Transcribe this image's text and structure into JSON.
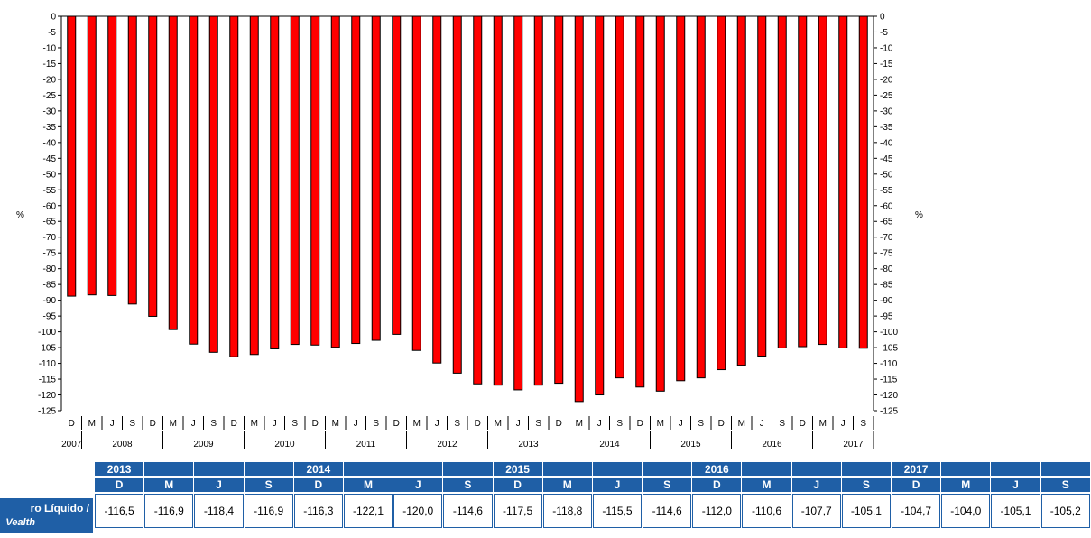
{
  "chart_data": {
    "type": "bar",
    "y_unit_label": "%",
    "ylim": [
      -125,
      0
    ],
    "ytick_step": 5,
    "bar_color": "#ff0000",
    "period_labels": [
      "D",
      "M",
      "J",
      "S",
      "D",
      "M",
      "J",
      "S",
      "D",
      "M",
      "J",
      "S",
      "D",
      "M",
      "J",
      "S",
      "D",
      "M",
      "J",
      "S",
      "D",
      "M",
      "J",
      "S",
      "D",
      "M",
      "J",
      "S",
      "D",
      "M",
      "J",
      "S",
      "D",
      "M",
      "J",
      "S",
      "D",
      "M",
      "J",
      "S"
    ],
    "year_labels": [
      {
        "label": "2007",
        "index": 0
      },
      {
        "label": "2008",
        "index": 2.5
      },
      {
        "label": "2009",
        "index": 6.5
      },
      {
        "label": "2010",
        "index": 10.5
      },
      {
        "label": "2011",
        "index": 14.5
      },
      {
        "label": "2012",
        "index": 18.5
      },
      {
        "label": "2013",
        "index": 22.5
      },
      {
        "label": "2014",
        "index": 26.5
      },
      {
        "label": "2015",
        "index": 30.5
      },
      {
        "label": "2016",
        "index": 34.5
      },
      {
        "label": "2017",
        "index": 38.5
      }
    ],
    "values": [
      -88.7,
      -88.3,
      -88.5,
      -91.2,
      -95.1,
      -99.3,
      -103.9,
      -106.5,
      -107.9,
      -107.2,
      -105.4,
      -104.0,
      -104.2,
      -104.9,
      -103.7,
      -102.7,
      -100.8,
      -105.9,
      -109.9,
      -113.1,
      -116.5,
      -116.9,
      -118.4,
      -116.9,
      -116.3,
      -122.1,
      -120.0,
      -114.6,
      -117.5,
      -118.8,
      -115.5,
      -114.6,
      -112.0,
      -110.6,
      -107.7,
      -105.1,
      -104.7,
      -104.0,
      -105.1,
      -105.2
    ]
  },
  "table": {
    "years": [
      "2013",
      "",
      "",
      "",
      "2014",
      "",
      "",
      "",
      "2015",
      "",
      "",
      "",
      "2016",
      "",
      "",
      "",
      "2017",
      "",
      ""
    ],
    "quarters": [
      "D",
      "M",
      "J",
      "S",
      "D",
      "M",
      "J",
      "S",
      "D",
      "M",
      "J",
      "S",
      "D",
      "M",
      "J",
      "S",
      "D",
      "M",
      "J",
      "S"
    ],
    "row_label_pt": "ro Líquido /",
    "row_label_en": "Vealth",
    "values": [
      "-116,5",
      "-116,9",
      "-118,4",
      "-116,9",
      "-116,3",
      "-122,1",
      "-120,0",
      "-114,6",
      "-117,5",
      "-118,8",
      "-115,5",
      "-114,6",
      "-112,0",
      "-110,6",
      "-107,7",
      "-105,1",
      "-104,7",
      "-104,0",
      "-105,1",
      "-105,2"
    ]
  }
}
